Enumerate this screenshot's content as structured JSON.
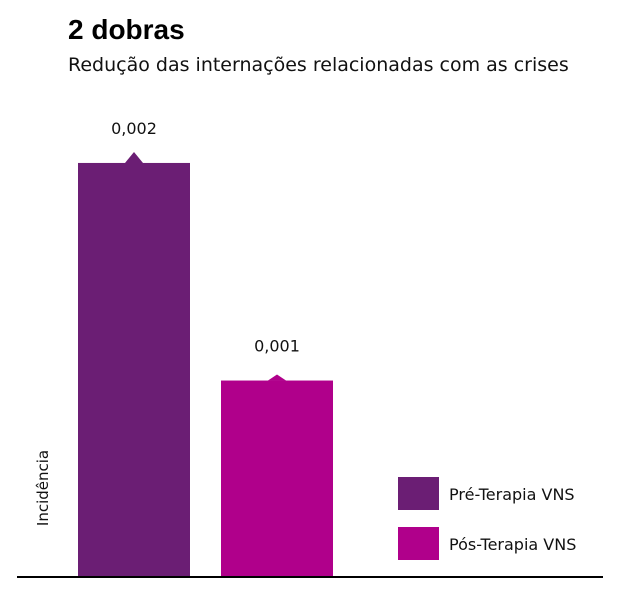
{
  "chart_data": {
    "type": "bar",
    "title": "2 dobras",
    "subtitle": "Redução das internações relacionadas com as crises",
    "ylabel": "Incidência",
    "xlabel": "",
    "ylim": [
      0,
      0.0024
    ],
    "grid": false,
    "legend_position": "bottom-right",
    "categories": [
      "Pré-Terapia VNS",
      "Pós-Terapia VNS"
    ],
    "values": [
      0.00196,
      0.00093
    ],
    "data_labels": [
      "0,002",
      "0,001"
    ],
    "colors": [
      "#6b1e74",
      "#b0008b"
    ]
  }
}
